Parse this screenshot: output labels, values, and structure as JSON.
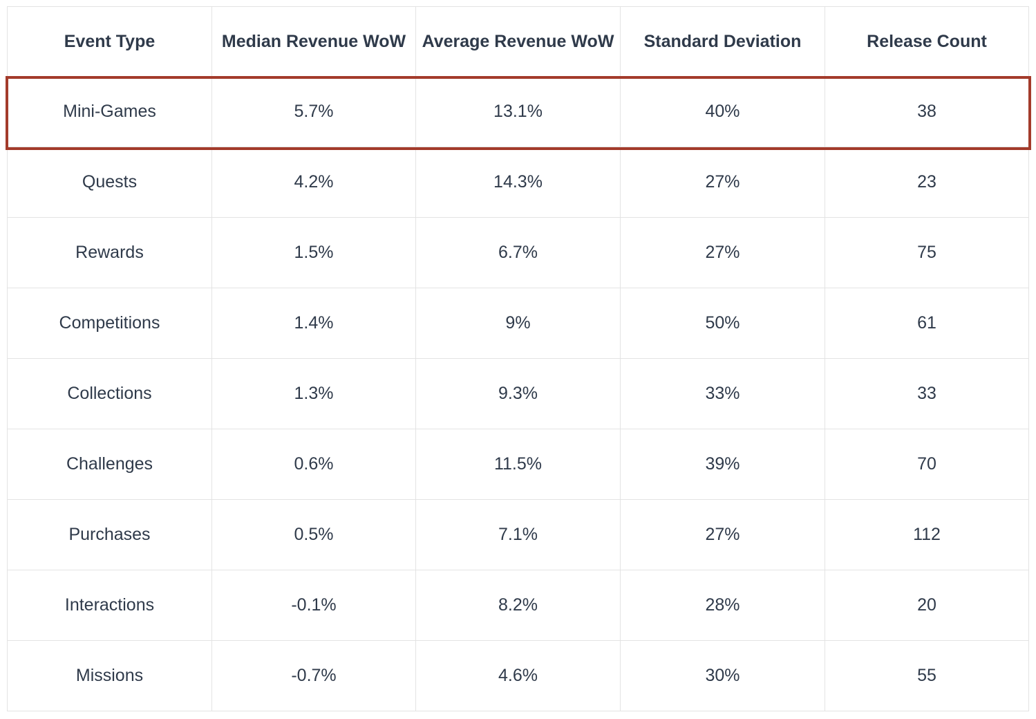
{
  "table": {
    "headers": [
      "Event Type",
      "Median Revenue WoW",
      "Average Revenue WoW",
      "Standard Deviation",
      "Release Count"
    ],
    "highlighted_row_index": 0,
    "highlight_color": "#a33b2b",
    "rows": [
      [
        "Mini-Games",
        "5.7%",
        "13.1%",
        "40%",
        "38"
      ],
      [
        "Quests",
        "4.2%",
        "14.3%",
        "27%",
        "23"
      ],
      [
        "Rewards",
        "1.5%",
        "6.7%",
        "27%",
        "75"
      ],
      [
        "Competitions",
        "1.4%",
        "9%",
        "50%",
        "61"
      ],
      [
        "Collections",
        "1.3%",
        "9.3%",
        "33%",
        "33"
      ],
      [
        "Challenges",
        "0.6%",
        "11.5%",
        "39%",
        "70"
      ],
      [
        "Purchases",
        "0.5%",
        "7.1%",
        "27%",
        "112"
      ],
      [
        "Interactions",
        "-0.1%",
        "8.2%",
        "28%",
        "20"
      ],
      [
        "Missions",
        "-0.7%",
        "4.6%",
        "30%",
        "55"
      ]
    ]
  },
  "chart_data": {
    "type": "table",
    "columns": [
      "Event Type",
      "Median Revenue WoW",
      "Average Revenue WoW",
      "Standard Deviation",
      "Release Count"
    ],
    "rows": [
      {
        "event_type": "Mini-Games",
        "median_revenue_wow_pct": 5.7,
        "average_revenue_wow_pct": 13.1,
        "standard_deviation_pct": 40,
        "release_count": 38
      },
      {
        "event_type": "Quests",
        "median_revenue_wow_pct": 4.2,
        "average_revenue_wow_pct": 14.3,
        "standard_deviation_pct": 27,
        "release_count": 23
      },
      {
        "event_type": "Rewards",
        "median_revenue_wow_pct": 1.5,
        "average_revenue_wow_pct": 6.7,
        "standard_deviation_pct": 27,
        "release_count": 75
      },
      {
        "event_type": "Competitions",
        "median_revenue_wow_pct": 1.4,
        "average_revenue_wow_pct": 9,
        "standard_deviation_pct": 50,
        "release_count": 61
      },
      {
        "event_type": "Collections",
        "median_revenue_wow_pct": 1.3,
        "average_revenue_wow_pct": 9.3,
        "standard_deviation_pct": 33,
        "release_count": 33
      },
      {
        "event_type": "Challenges",
        "median_revenue_wow_pct": 0.6,
        "average_revenue_wow_pct": 11.5,
        "standard_deviation_pct": 39,
        "release_count": 70
      },
      {
        "event_type": "Purchases",
        "median_revenue_wow_pct": 0.5,
        "average_revenue_wow_pct": 7.1,
        "standard_deviation_pct": 27,
        "release_count": 112
      },
      {
        "event_type": "Interactions",
        "median_revenue_wow_pct": -0.1,
        "average_revenue_wow_pct": 8.2,
        "standard_deviation_pct": 28,
        "release_count": 20
      },
      {
        "event_type": "Missions",
        "median_revenue_wow_pct": -0.7,
        "average_revenue_wow_pct": 4.6,
        "standard_deviation_pct": 30,
        "release_count": 55
      }
    ],
    "highlighted_row": "Mini-Games"
  }
}
